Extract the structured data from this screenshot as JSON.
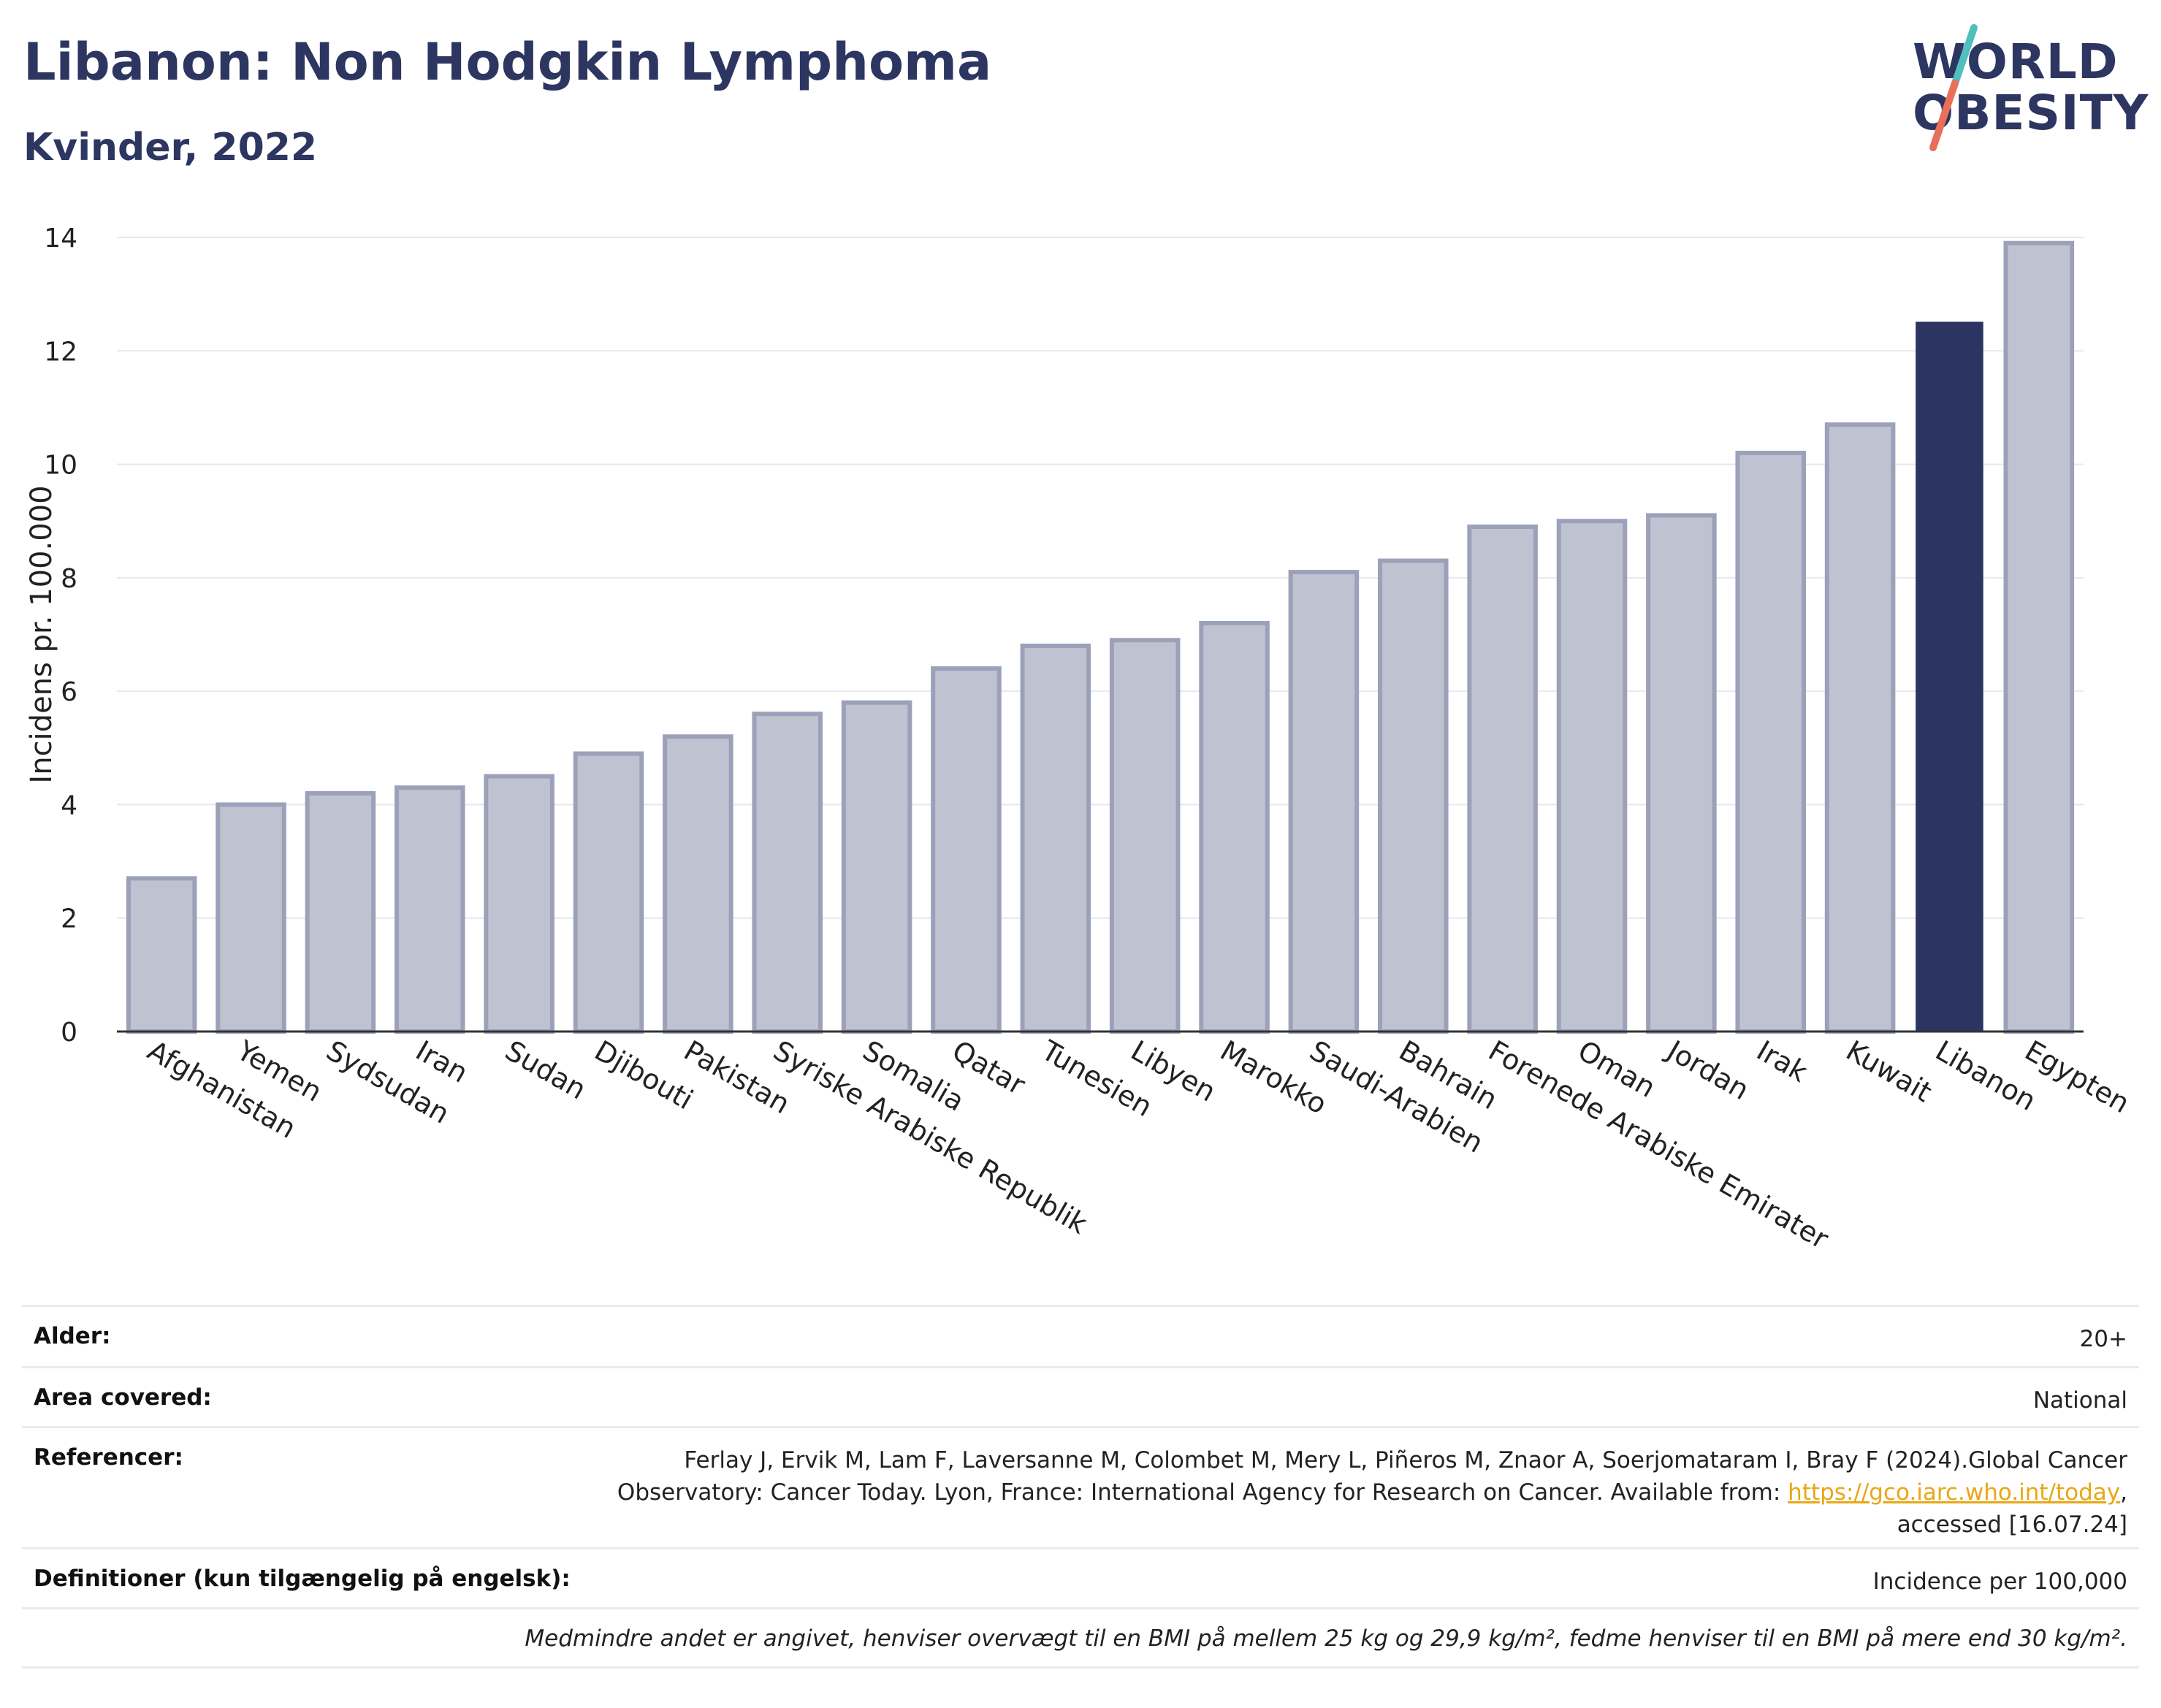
{
  "header": {
    "title": "Libanon: Non Hodgkin Lymphoma",
    "subtitle": "Kvinder, 2022"
  },
  "logo": {
    "line1": "WORLD",
    "line2": "OBESITY",
    "slash_colors": [
      "#4fbfbf",
      "#e8705a"
    ]
  },
  "chart_data": {
    "type": "bar",
    "ylabel": "Incidens pr. 100.000",
    "xlabel": "",
    "ylim": [
      0,
      14
    ],
    "yticks": [
      0,
      2,
      4,
      6,
      8,
      10,
      12,
      14
    ],
    "grid": true,
    "highlight": "Libanon",
    "colors": {
      "bar": "#bfc2d0",
      "bar_border": "#9ca1b9",
      "highlight": "#2c3561"
    },
    "categories": [
      "Afghanistan",
      "Yemen",
      "Sydsudan",
      "Iran",
      "Sudan",
      "Djibouti",
      "Pakistan",
      "Syriske Arabiske Republik",
      "Somalia",
      "Qatar",
      "Tunesien",
      "Libyen",
      "Marokko",
      "Saudi-Arabien",
      "Bahrain",
      "Forenede Arabiske Emirater",
      "Oman",
      "Jordan",
      "Irak",
      "Kuwait",
      "Libanon",
      "Egypten"
    ],
    "values": [
      2.7,
      4.0,
      4.2,
      4.3,
      4.5,
      4.9,
      5.2,
      5.6,
      5.8,
      6.4,
      6.8,
      6.9,
      7.2,
      8.1,
      8.3,
      8.9,
      9.0,
      9.1,
      10.2,
      10.7,
      12.5,
      13.9
    ]
  },
  "meta": {
    "age_label": "Alder:",
    "age_value": "20+",
    "area_label": "Area covered:",
    "area_value": "National",
    "ref_label": "Referencer:",
    "ref_line1": "Ferlay J, Ervik M, Lam F, Laversanne M, Colombet M, Mery L, Piñeros M, Znaor A, Soerjomataram I, Bray F (2024).Global Cancer",
    "ref_line2_pre": "Observatory: Cancer Today. Lyon, France: International Agency for Research on Cancer. Available from: ",
    "ref_link": "https://gco.iarc.who.int/today",
    "ref_line2_post": ",",
    "ref_line3": "accessed [16.07.24]",
    "def_label": "Definitioner (kun tilgængelig på engelsk):",
    "def_value": "Incidence per 100,000",
    "note": "Medmindre andet er angivet, henviser overvægt til en BMI på mellem 25 kg og 29,9 kg/m², fedme henviser til en BMI på mere end 30 kg/m²."
  }
}
